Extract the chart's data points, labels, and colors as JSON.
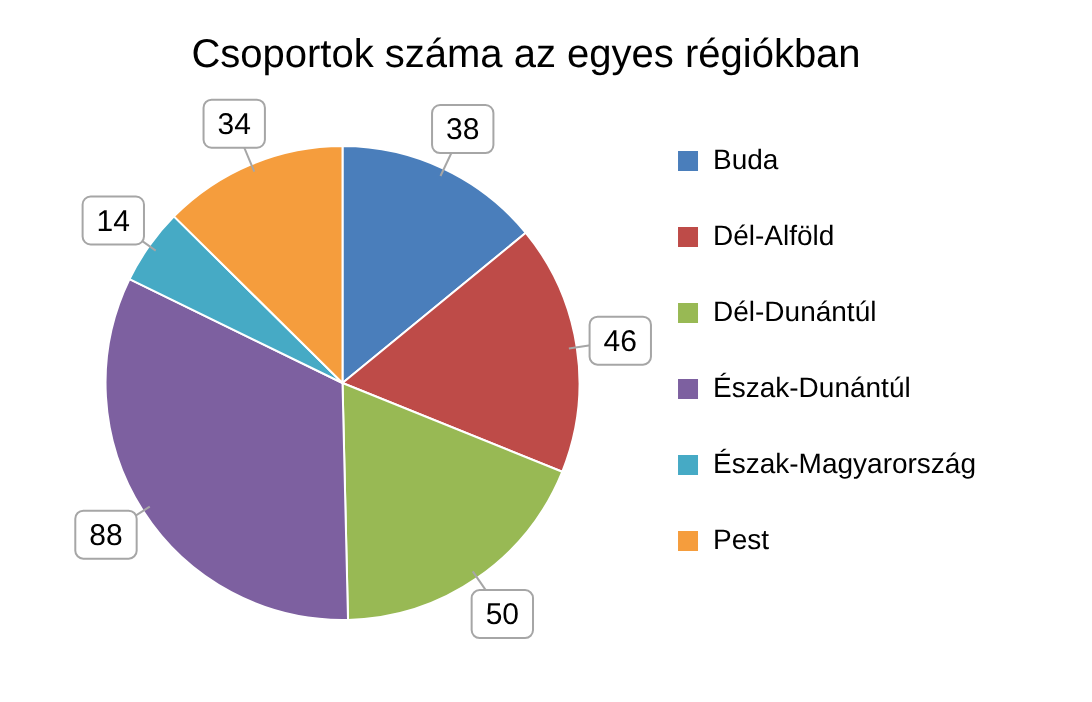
{
  "chart_data": {
    "type": "pie",
    "title": "Csoportok száma az egyes régiókban",
    "categories": [
      "Buda",
      "Dél-Alföld",
      "Dél-Dunántúl",
      "Észak-Dunántúl",
      "Észak-Magyarország",
      "Pest"
    ],
    "values": [
      38,
      46,
      50,
      88,
      14,
      34
    ],
    "colors": [
      "#4a7ebb",
      "#be4b48",
      "#98b954",
      "#7d60a0",
      "#46aac5",
      "#f59d3d"
    ],
    "data_labels": true,
    "legend": "right"
  }
}
